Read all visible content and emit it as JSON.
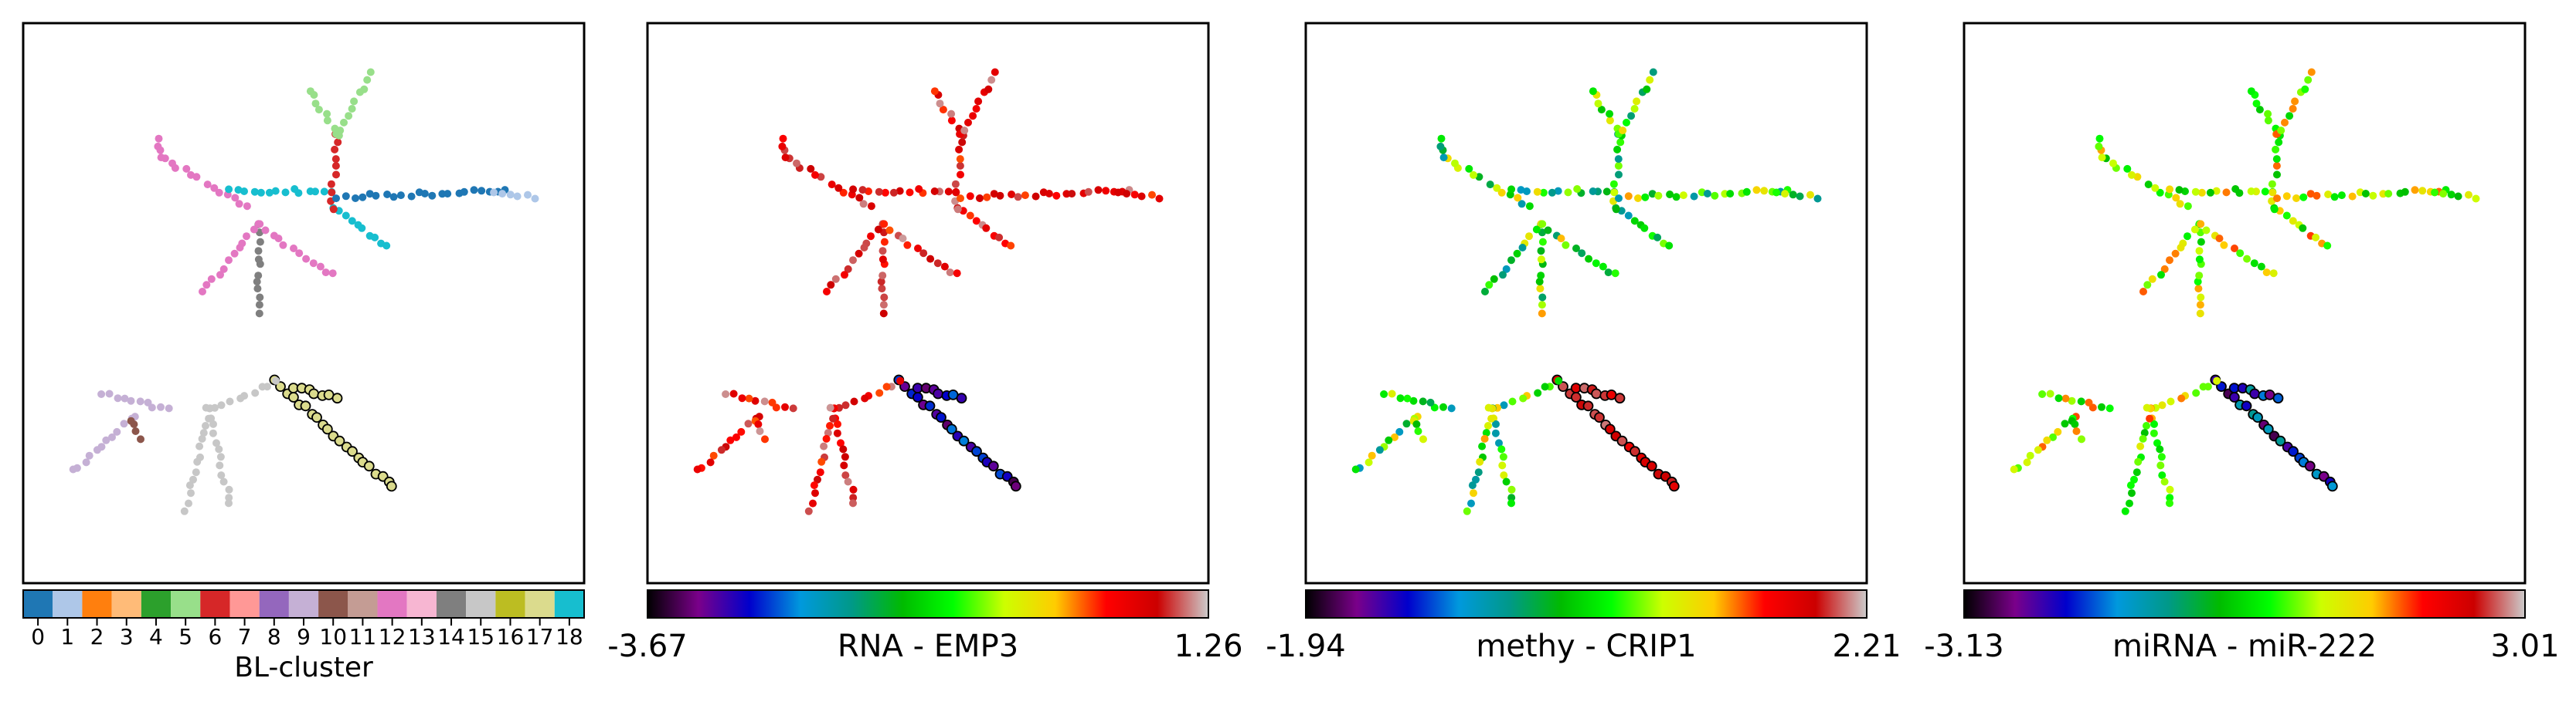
{
  "panels": [
    {
      "id": "cluster",
      "colorbar": {
        "kind": "categorical",
        "label": "BL-cluster",
        "ticks": [
          "0",
          "1",
          "2",
          "3",
          "4",
          "5",
          "6",
          "7",
          "8",
          "9",
          "10",
          "11",
          "12",
          "13",
          "14",
          "15",
          "16",
          "17",
          "18"
        ]
      }
    },
    {
      "id": "rna",
      "colorbar": {
        "kind": "continuous",
        "label": "RNA - EMP3",
        "min": "-3.67",
        "max": "1.26"
      }
    },
    {
      "id": "methy",
      "colorbar": {
        "kind": "continuous",
        "label": "methy - CRIP1",
        "min": "-1.94",
        "max": "2.21"
      }
    },
    {
      "id": "mirna",
      "colorbar": {
        "kind": "continuous",
        "label": "miRNA - miR-222",
        "min": "-3.13",
        "max": "3.01"
      }
    }
  ],
  "cluster_colors": [
    "#1f77b4",
    "#aec7e8",
    "#ff7f0e",
    "#ffbb78",
    "#2ca02c",
    "#98df8a",
    "#d62728",
    "#ff9896",
    "#9467bd",
    "#c5b0d5",
    "#8c564b",
    "#c49c94",
    "#e377c2",
    "#f7b6d2",
    "#7f7f7f",
    "#c7c7c7",
    "#bcbd22",
    "#dbdb8d",
    "#17becf"
  ],
  "colormap": [
    "#000000",
    "#7a008a",
    "#0000cc",
    "#0099dd",
    "#009988",
    "#00bb00",
    "#00ff00",
    "#ccff00",
    "#ffcc00",
    "#ff0000",
    "#cc0000",
    "#cccccc"
  ],
  "chart_data": {
    "type": "scatter",
    "layout": "tree",
    "branches": [
      {
        "name": "root-to-junction",
        "cluster": 14,
        "start": [
          0.42,
          0.52
        ],
        "end": [
          0.42,
          0.36
        ]
      },
      {
        "name": "bottom-right-arm",
        "cluster": 17,
        "start": [
          0.45,
          0.64
        ],
        "end": [
          0.66,
          0.83
        ],
        "highlight": true
      },
      {
        "name": "bottom-right-fork",
        "cluster": 17,
        "start": [
          0.48,
          0.65
        ],
        "end": [
          0.56,
          0.67
        ],
        "highlight": true
      },
      {
        "name": "bottom-main",
        "cluster": 15,
        "start": [
          0.45,
          0.64
        ],
        "end": [
          0.33,
          0.69
        ]
      },
      {
        "name": "bottom-sub-a",
        "cluster": 15,
        "start": [
          0.33,
          0.69
        ],
        "end": [
          0.37,
          0.86
        ]
      },
      {
        "name": "bottom-sub-b",
        "cluster": 15,
        "start": [
          0.33,
          0.69
        ],
        "end": [
          0.29,
          0.87
        ]
      },
      {
        "name": "bottom-left-arm",
        "cluster": 9,
        "start": [
          0.26,
          0.69
        ],
        "end": [
          0.14,
          0.66
        ]
      },
      {
        "name": "bottom-left-tail",
        "cluster": 9,
        "start": [
          0.2,
          0.7
        ],
        "end": [
          0.09,
          0.8
        ]
      },
      {
        "name": "bottom-left-stub",
        "cluster": 10,
        "start": [
          0.19,
          0.71
        ],
        "end": [
          0.21,
          0.74
        ]
      },
      {
        "name": "upper-loop-left",
        "cluster": 12,
        "start": [
          0.42,
          0.36
        ],
        "end": [
          0.32,
          0.48
        ]
      },
      {
        "name": "upper-loop-right",
        "cluster": 12,
        "start": [
          0.42,
          0.36
        ],
        "end": [
          0.55,
          0.45
        ]
      },
      {
        "name": "upper-left-arm",
        "cluster": 12,
        "start": [
          0.4,
          0.33
        ],
        "end": [
          0.25,
          0.24
        ]
      },
      {
        "name": "upper-left-tail",
        "cluster": 12,
        "start": [
          0.25,
          0.24
        ],
        "end": [
          0.24,
          0.21
        ]
      },
      {
        "name": "upper-cyan",
        "cluster": 18,
        "start": [
          0.55,
          0.3
        ],
        "end": [
          0.37,
          0.3
        ]
      },
      {
        "name": "upper-cyan-b",
        "cluster": 18,
        "start": [
          0.55,
          0.33
        ],
        "end": [
          0.65,
          0.4
        ]
      },
      {
        "name": "upper-stem",
        "cluster": 6,
        "start": [
          0.55,
          0.33
        ],
        "end": [
          0.56,
          0.2
        ]
      },
      {
        "name": "upper-right-arm",
        "cluster": 0,
        "start": [
          0.56,
          0.31
        ],
        "end": [
          0.86,
          0.3
        ]
      },
      {
        "name": "upper-right-tip",
        "cluster": 1,
        "start": [
          0.84,
          0.3
        ],
        "end": [
          0.91,
          0.31
        ]
      },
      {
        "name": "top-branch",
        "cluster": 5,
        "start": [
          0.56,
          0.2
        ],
        "end": [
          0.51,
          0.12
        ]
      },
      {
        "name": "top-branch-b",
        "cluster": 5,
        "start": [
          0.56,
          0.2
        ],
        "end": [
          0.62,
          0.09
        ]
      }
    ],
    "xlim": [
      0,
      1
    ],
    "ylim": [
      0,
      1
    ]
  }
}
